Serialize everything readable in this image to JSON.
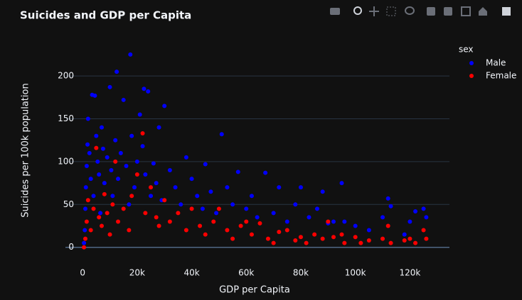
{
  "chart_data": {
    "type": "scatter",
    "title": "Suicides and GDP per Capita",
    "x_label": "GDP per Capita",
    "y_label": "Suicides per 100k population",
    "legend_title": "sex",
    "legend": "top-right",
    "grid": true,
    "xlim": [
      -6300,
      134500
    ],
    "ylim": [
      -11,
      239
    ],
    "xticks": [
      0,
      {
        "value": 20000,
        "label": "20k"
      },
      {
        "value": 40000,
        "label": "40k"
      },
      {
        "value": 60000,
        "label": "60k"
      },
      {
        "value": 80000,
        "label": "80k"
      },
      {
        "value": 100000,
        "label": "100k"
      },
      {
        "value": 120000,
        "label": "120k"
      }
    ],
    "yticks": [
      0,
      50,
      100,
      150,
      200
    ],
    "series": [
      {
        "name": "Male",
        "color": "#0000ff",
        "x": [
          500,
          800,
          1000,
          1200,
          1500,
          1800,
          2000,
          2500,
          3000,
          3500,
          4000,
          4500,
          5000,
          5500,
          6000,
          6500,
          7000,
          7500,
          8000,
          9000,
          10000,
          10500,
          11000,
          12000,
          12500,
          13000,
          14000,
          15000,
          16000,
          17000,
          17500,
          18000,
          19000,
          20000,
          21000,
          22000,
          22500,
          23000,
          24000,
          25000,
          26000,
          27000,
          28000,
          29000,
          30000,
          32000,
          34000,
          36000,
          38000,
          40000,
          42000,
          44000,
          45000,
          47000,
          49000,
          51000,
          53000,
          55000,
          57000,
          60000,
          62000,
          64000,
          67000,
          70000,
          72000,
          75000,
          78000,
          80000,
          83000,
          86000,
          88000,
          90000,
          92000,
          95000,
          96000,
          100000,
          105000,
          110000,
          112000,
          113000,
          118000,
          120000,
          122000,
          125000,
          126000
        ],
        "values": [
          5,
          20,
          45,
          70,
          95,
          120,
          150,
          110,
          80,
          178,
          60,
          177,
          130,
          100,
          85,
          40,
          140,
          115,
          75,
          105,
          187,
          90,
          60,
          125,
          205,
          80,
          110,
          172,
          95,
          50,
          225,
          130,
          70,
          100,
          155,
          118,
          185,
          85,
          182,
          60,
          98,
          75,
          140,
          55,
          165,
          90,
          70,
          50,
          105,
          80,
          60,
          45,
          97,
          65,
          40,
          132,
          70,
          50,
          88,
          45,
          60,
          35,
          87,
          40,
          70,
          30,
          50,
          70,
          35,
          45,
          65,
          28,
          30,
          75,
          30,
          25,
          20,
          35,
          57,
          48,
          15,
          30,
          42,
          45,
          35
        ]
      },
      {
        "name": "Female",
        "color": "#ff0000",
        "x": [
          500,
          1000,
          1500,
          2000,
          3000,
          4000,
          5000,
          6000,
          7000,
          8000,
          9000,
          10000,
          11000,
          12000,
          13000,
          15000,
          17000,
          18000,
          20000,
          22000,
          23000,
          25000,
          27000,
          28000,
          30000,
          32000,
          35000,
          38000,
          40000,
          43000,
          45000,
          48000,
          50000,
          53000,
          55000,
          58000,
          60000,
          62000,
          65000,
          68000,
          70000,
          72000,
          75000,
          78000,
          80000,
          82000,
          85000,
          88000,
          90000,
          92000,
          95000,
          96000,
          100000,
          102000,
          105000,
          110000,
          112000,
          113000,
          118000,
          120000,
          122000,
          125000,
          126000
        ],
        "values": [
          0,
          10,
          30,
          55,
          20,
          45,
          116,
          35,
          25,
          62,
          40,
          15,
          50,
          100,
          30,
          45,
          20,
          60,
          85,
          133,
          40,
          70,
          35,
          25,
          55,
          30,
          40,
          20,
          45,
          25,
          15,
          30,
          45,
          20,
          10,
          25,
          30,
          15,
          28,
          10,
          5,
          18,
          20,
          8,
          12,
          5,
          15,
          10,
          30,
          12,
          15,
          5,
          12,
          5,
          8,
          10,
          25,
          5,
          8,
          10,
          5,
          20,
          10
        ]
      }
    ]
  }
}
